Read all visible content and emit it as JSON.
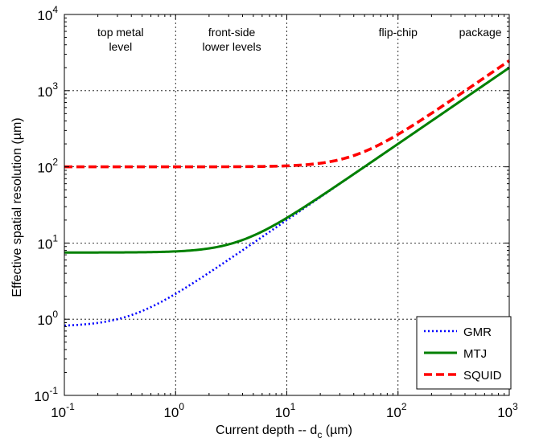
{
  "chart_data": {
    "type": "line",
    "xscale": "log",
    "yscale": "log",
    "xlim": [
      0.1,
      1000
    ],
    "ylim": [
      0.1,
      10000
    ],
    "grid": true,
    "xticks": [
      {
        "base": "10",
        "exp": "-1"
      },
      {
        "base": "10",
        "exp": "0"
      },
      {
        "base": "10",
        "exp": "1"
      },
      {
        "base": "10",
        "exp": "2"
      },
      {
        "base": "10",
        "exp": "3"
      }
    ],
    "yticks": [
      {
        "base": "10",
        "exp": "-1"
      },
      {
        "base": "10",
        "exp": "0"
      },
      {
        "base": "10",
        "exp": "1"
      },
      {
        "base": "10",
        "exp": "2"
      },
      {
        "base": "10",
        "exp": "3"
      },
      {
        "base": "10",
        "exp": "4"
      }
    ],
    "xlabel": {
      "main": "Current depth -- d",
      "sub": "c",
      "unit": " (µm)"
    },
    "ylabel": "Effective spatial resolution (µm)",
    "legend_position": "lower-right",
    "region_labels": [
      {
        "lines": [
          "top metal",
          "level"
        ],
        "x": 0.32
      },
      {
        "lines": [
          "front-side",
          "lower levels"
        ],
        "x": 3.2
      },
      {
        "lines": [
          "flip-chip"
        ],
        "x": 100
      },
      {
        "lines": [
          "package"
        ],
        "x": 550
      }
    ],
    "series": [
      {
        "name": "GMR",
        "color": "#0000ff",
        "style": "dotted",
        "floor": 0.8,
        "x": [
          0.1,
          0.2,
          0.5,
          1,
          2,
          5,
          10,
          20,
          50,
          100,
          200,
          500,
          1000
        ],
        "y": [
          0.82,
          1.1,
          1.75,
          2.6,
          4.3,
          10.1,
          20,
          40,
          100,
          200,
          400,
          1000,
          2000
        ]
      },
      {
        "name": "MTJ",
        "color": "#008000",
        "style": "solid",
        "floor": 7.5,
        "x": [
          0.1,
          0.2,
          0.5,
          1,
          2,
          5,
          10,
          20,
          50,
          100,
          200,
          500,
          1000
        ],
        "y": [
          7.55,
          7.7,
          8.3,
          9.3,
          11.8,
          17.5,
          27,
          42.6,
          100,
          200,
          400,
          1000,
          2000
        ]
      },
      {
        "name": "SQUID",
        "color": "#ff0000",
        "style": "dashed",
        "floor": 100,
        "x": [
          0.1,
          0.2,
          0.5,
          1,
          2,
          5,
          10,
          20,
          50,
          100,
          200,
          500,
          1000
        ],
        "y": [
          100,
          100.1,
          100.1,
          100.5,
          102,
          112,
          141,
          204,
          354,
          539,
          849,
          1480,
          2470
        ]
      }
    ]
  }
}
